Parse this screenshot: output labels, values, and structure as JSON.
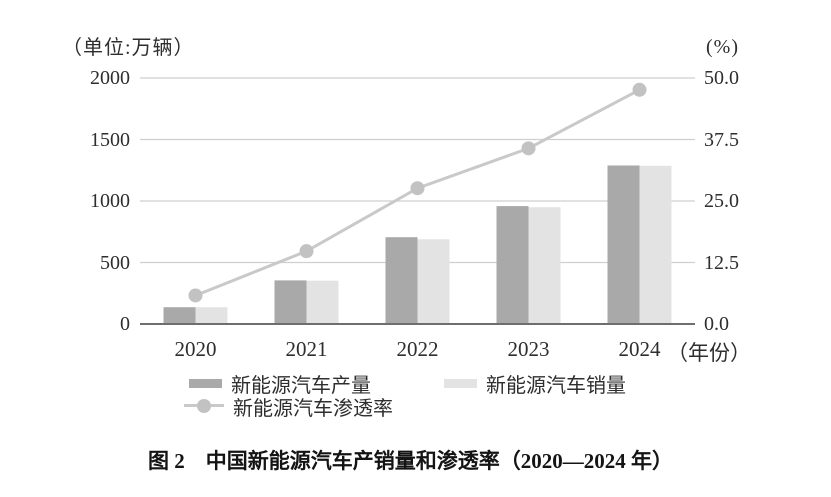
{
  "figure": {
    "caption": "图 2　中国新能源汽车产销量和渗透率（2020—2024 年）"
  },
  "colors": {
    "bar_production": "#a9a9a9",
    "bar_sales": "#e3e3e3",
    "line_penetration": "#c9c9c9",
    "marker": "#c2c2c2",
    "gridline": "#cfcfcf",
    "axis_line": "#6e6e6e",
    "text": "#2e2e2e"
  },
  "chart_data": {
    "type": "combo",
    "categories": [
      "2020",
      "2021",
      "2022",
      "2023",
      "2024"
    ],
    "x_axis_suffix": "（年份）",
    "series": [
      {
        "name": "新能源汽车产量",
        "type": "bar",
        "axis": "left",
        "color": "#a9a9a9",
        "values": [
          136.6,
          354.5,
          705.8,
          958.7,
          1288.8
        ]
      },
      {
        "name": "新能源汽车销量",
        "type": "bar",
        "axis": "left",
        "color": "#e3e3e3",
        "values": [
          136.7,
          352.1,
          688.7,
          949.5,
          1286.6
        ]
      },
      {
        "name": "新能源汽车渗透率",
        "type": "line",
        "axis": "right",
        "color": "#c9c9c9",
        "marker_color": "#c2c2c2",
        "values": [
          5.8,
          14.8,
          27.6,
          35.7,
          47.6
        ]
      }
    ],
    "left_axis": {
      "label": "（单位:万辆）",
      "range": [
        0,
        2000
      ],
      "ticks": [
        0,
        500,
        1000,
        1500,
        2000
      ],
      "tick_labels": [
        "0",
        "500",
        "1000",
        "1500",
        "2000"
      ]
    },
    "right_axis": {
      "label": "(%)",
      "range": [
        0,
        50
      ],
      "ticks": [
        0,
        12.5,
        25,
        37.5,
        50
      ],
      "tick_labels": [
        "0.0",
        "12.5",
        "25.0",
        "37.5",
        "50.0"
      ]
    },
    "grid": true,
    "legend_position": "bottom"
  }
}
